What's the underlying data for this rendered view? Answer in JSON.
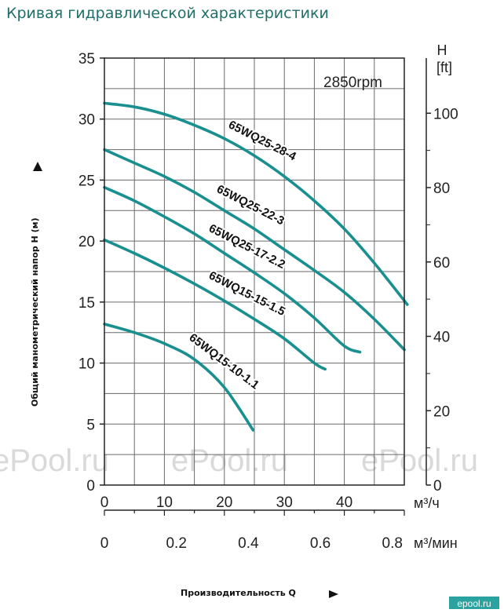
{
  "title": "Кривая гидравлической характеристики",
  "chart_data": {
    "type": "line",
    "speed_label": "2850rpm",
    "y_left": {
      "label": "Общий манометрический напор H (м)",
      "ticks": [
        "35",
        "30",
        "25",
        "20",
        "15",
        "10",
        "5",
        "0"
      ],
      "range": [
        0,
        35
      ]
    },
    "y_right": {
      "unit_line1": "H",
      "unit_line2": "[ft]",
      "ticks": [
        "100",
        "80",
        "60",
        "40",
        "20",
        "0"
      ]
    },
    "x_m3h": {
      "unit": "м³/ч",
      "ticks": [
        "0",
        "10",
        "20",
        "30",
        "40"
      ]
    },
    "x_m3min": {
      "unit": "м³/мин",
      "ticks": [
        "0",
        "0.2",
        "0.4",
        "0.6",
        "0.8"
      ]
    },
    "x_label": "Производительность Q",
    "x_range_m3h": [
      0,
      50
    ],
    "series": [
      {
        "name": "65WQ25-28-4",
        "x": [
          0,
          5,
          10,
          15,
          20,
          25,
          30,
          35,
          40,
          45,
          50.5
        ],
        "y": [
          31.3,
          31.0,
          30.4,
          29.5,
          28.4,
          27.0,
          25.3,
          23.3,
          21.0,
          18.2,
          14.8
        ]
      },
      {
        "name": "65WQ25-22-3",
        "x": [
          0,
          5,
          10,
          15,
          20,
          25,
          30,
          35,
          40,
          45,
          50
        ],
        "y": [
          27.5,
          26.4,
          25.3,
          24.0,
          22.5,
          21.0,
          19.3,
          17.6,
          15.8,
          13.6,
          11.1
        ]
      },
      {
        "name": "65WQ25-17-2.2",
        "x": [
          0,
          5,
          10,
          15,
          20,
          25,
          30,
          35,
          40,
          42.6
        ],
        "y": [
          24.4,
          23.3,
          22.0,
          20.6,
          19.0,
          17.4,
          15.7,
          13.7,
          11.4,
          10.9
        ]
      },
      {
        "name": "65WQ15-15-1.5",
        "x": [
          0,
          5,
          10,
          15,
          20,
          25,
          30,
          35,
          36.8
        ],
        "y": [
          20.1,
          19.0,
          17.8,
          16.5,
          15.1,
          13.6,
          12.0,
          10.0,
          9.5
        ]
      },
      {
        "name": "65WQ15-10-1.1",
        "x": [
          0,
          5,
          10,
          15,
          20,
          24.8
        ],
        "y": [
          13.2,
          12.5,
          11.6,
          10.3,
          8.0,
          4.5
        ]
      }
    ],
    "watermark": "ePool.ru",
    "corner_logo": "epool.ru"
  }
}
